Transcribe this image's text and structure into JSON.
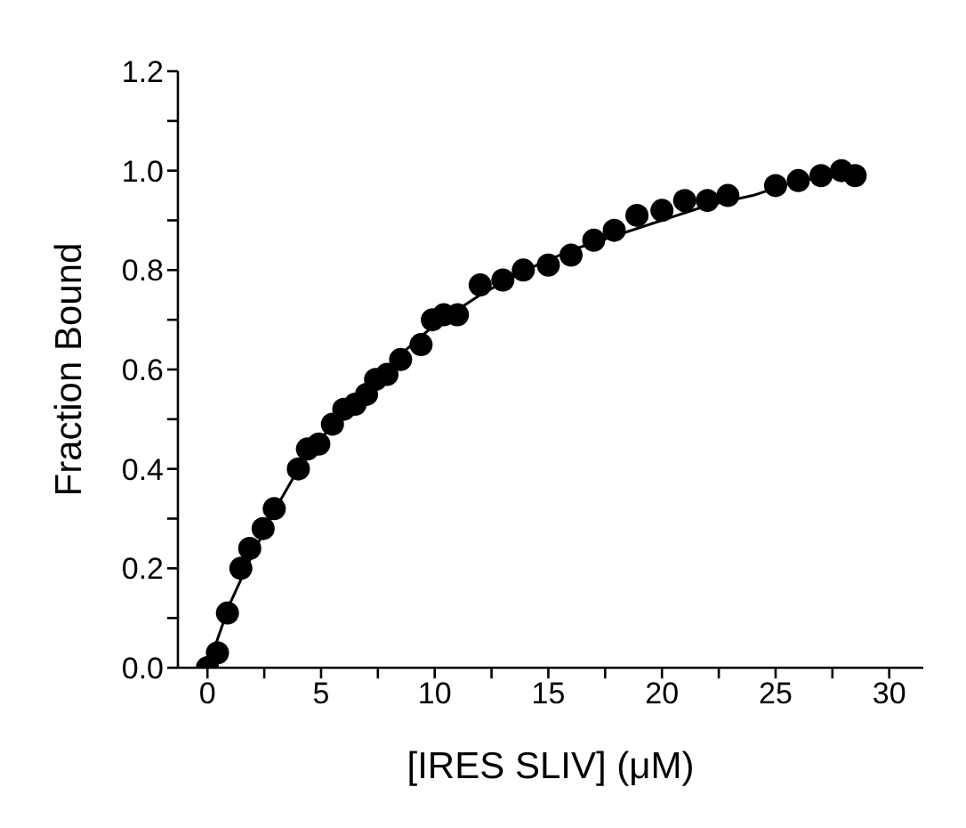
{
  "chart_data": {
    "type": "scatter",
    "xlabel": "[IRES SLIV] (μM)",
    "ylabel": "Fraction Bound",
    "xlim": [
      -1.3,
      31.5
    ],
    "xticks": [
      0,
      {
        "value": 2.5,
        "label": null
      },
      5,
      {
        "value": 7.5,
        "label": null
      },
      10,
      {
        "value": 12.5,
        "label": null
      },
      15,
      {
        "value": 17.5,
        "label": null
      },
      20,
      {
        "value": 22.5,
        "label": null
      },
      25,
      {
        "value": 27.5,
        "label": null
      },
      30
    ],
    "ylim": [
      0,
      1.2
    ],
    "yticks": [
      {
        "value": 0,
        "label": "0.0"
      },
      {
        "value": 0.1,
        "label": null
      },
      {
        "value": 0.2,
        "label": "0.2"
      },
      {
        "value": 0.3,
        "label": null
      },
      {
        "value": 0.4,
        "label": "0.4"
      },
      {
        "value": 0.5,
        "label": null
      },
      {
        "value": 0.6,
        "label": "0.6"
      },
      {
        "value": 0.7,
        "label": null
      },
      {
        "value": 0.8,
        "label": "0.8"
      },
      {
        "value": 0.9,
        "label": null
      },
      {
        "value": 1.0,
        "label": "1.0"
      },
      {
        "value": 1.1,
        "label": null
      },
      {
        "value": 1.2,
        "label": "1.2"
      }
    ],
    "grid": false,
    "legend": false,
    "series": [
      {
        "type": "scatter",
        "color": "#000000",
        "marker": "circle",
        "x": [
          0,
          0.44,
          0.88,
          1.47,
          1.86,
          2.45,
          2.94,
          4.0,
          4.4,
          4.9,
          5.5,
          6.0,
          6.5,
          7.0,
          7.4,
          7.9,
          8.5,
          9.4,
          9.9,
          10.4,
          11.0,
          12.0,
          13.0,
          13.9,
          15.0,
          16.0,
          17.0,
          17.9,
          18.9,
          20.0,
          21.0,
          22.0,
          22.9,
          25.0,
          26.0,
          27.0,
          27.9,
          28.5
        ],
        "values": [
          0,
          0.03,
          0.11,
          0.2,
          0.24,
          0.28,
          0.32,
          0.4,
          0.44,
          0.45,
          0.49,
          0.52,
          0.53,
          0.55,
          0.58,
          0.59,
          0.62,
          0.65,
          0.7,
          0.71,
          0.71,
          0.77,
          0.78,
          0.8,
          0.81,
          0.83,
          0.86,
          0.88,
          0.91,
          0.92,
          0.94,
          0.94,
          0.95,
          0.97,
          0.98,
          0.99,
          1.0,
          0.99
        ]
      },
      {
        "type": "line",
        "color": "#000000",
        "marker": "none",
        "line_style": "solid",
        "x": [
          0,
          1,
          2,
          3,
          4,
          5,
          6,
          8,
          10,
          12,
          14,
          16,
          18,
          20,
          22,
          24,
          26,
          28,
          28.5
        ],
        "values": [
          0,
          0.13,
          0.23,
          0.32,
          0.4,
          0.46,
          0.52,
          0.61,
          0.69,
          0.75,
          0.8,
          0.84,
          0.87,
          0.9,
          0.93,
          0.95,
          0.98,
          0.99,
          1.0
        ]
      }
    ]
  }
}
